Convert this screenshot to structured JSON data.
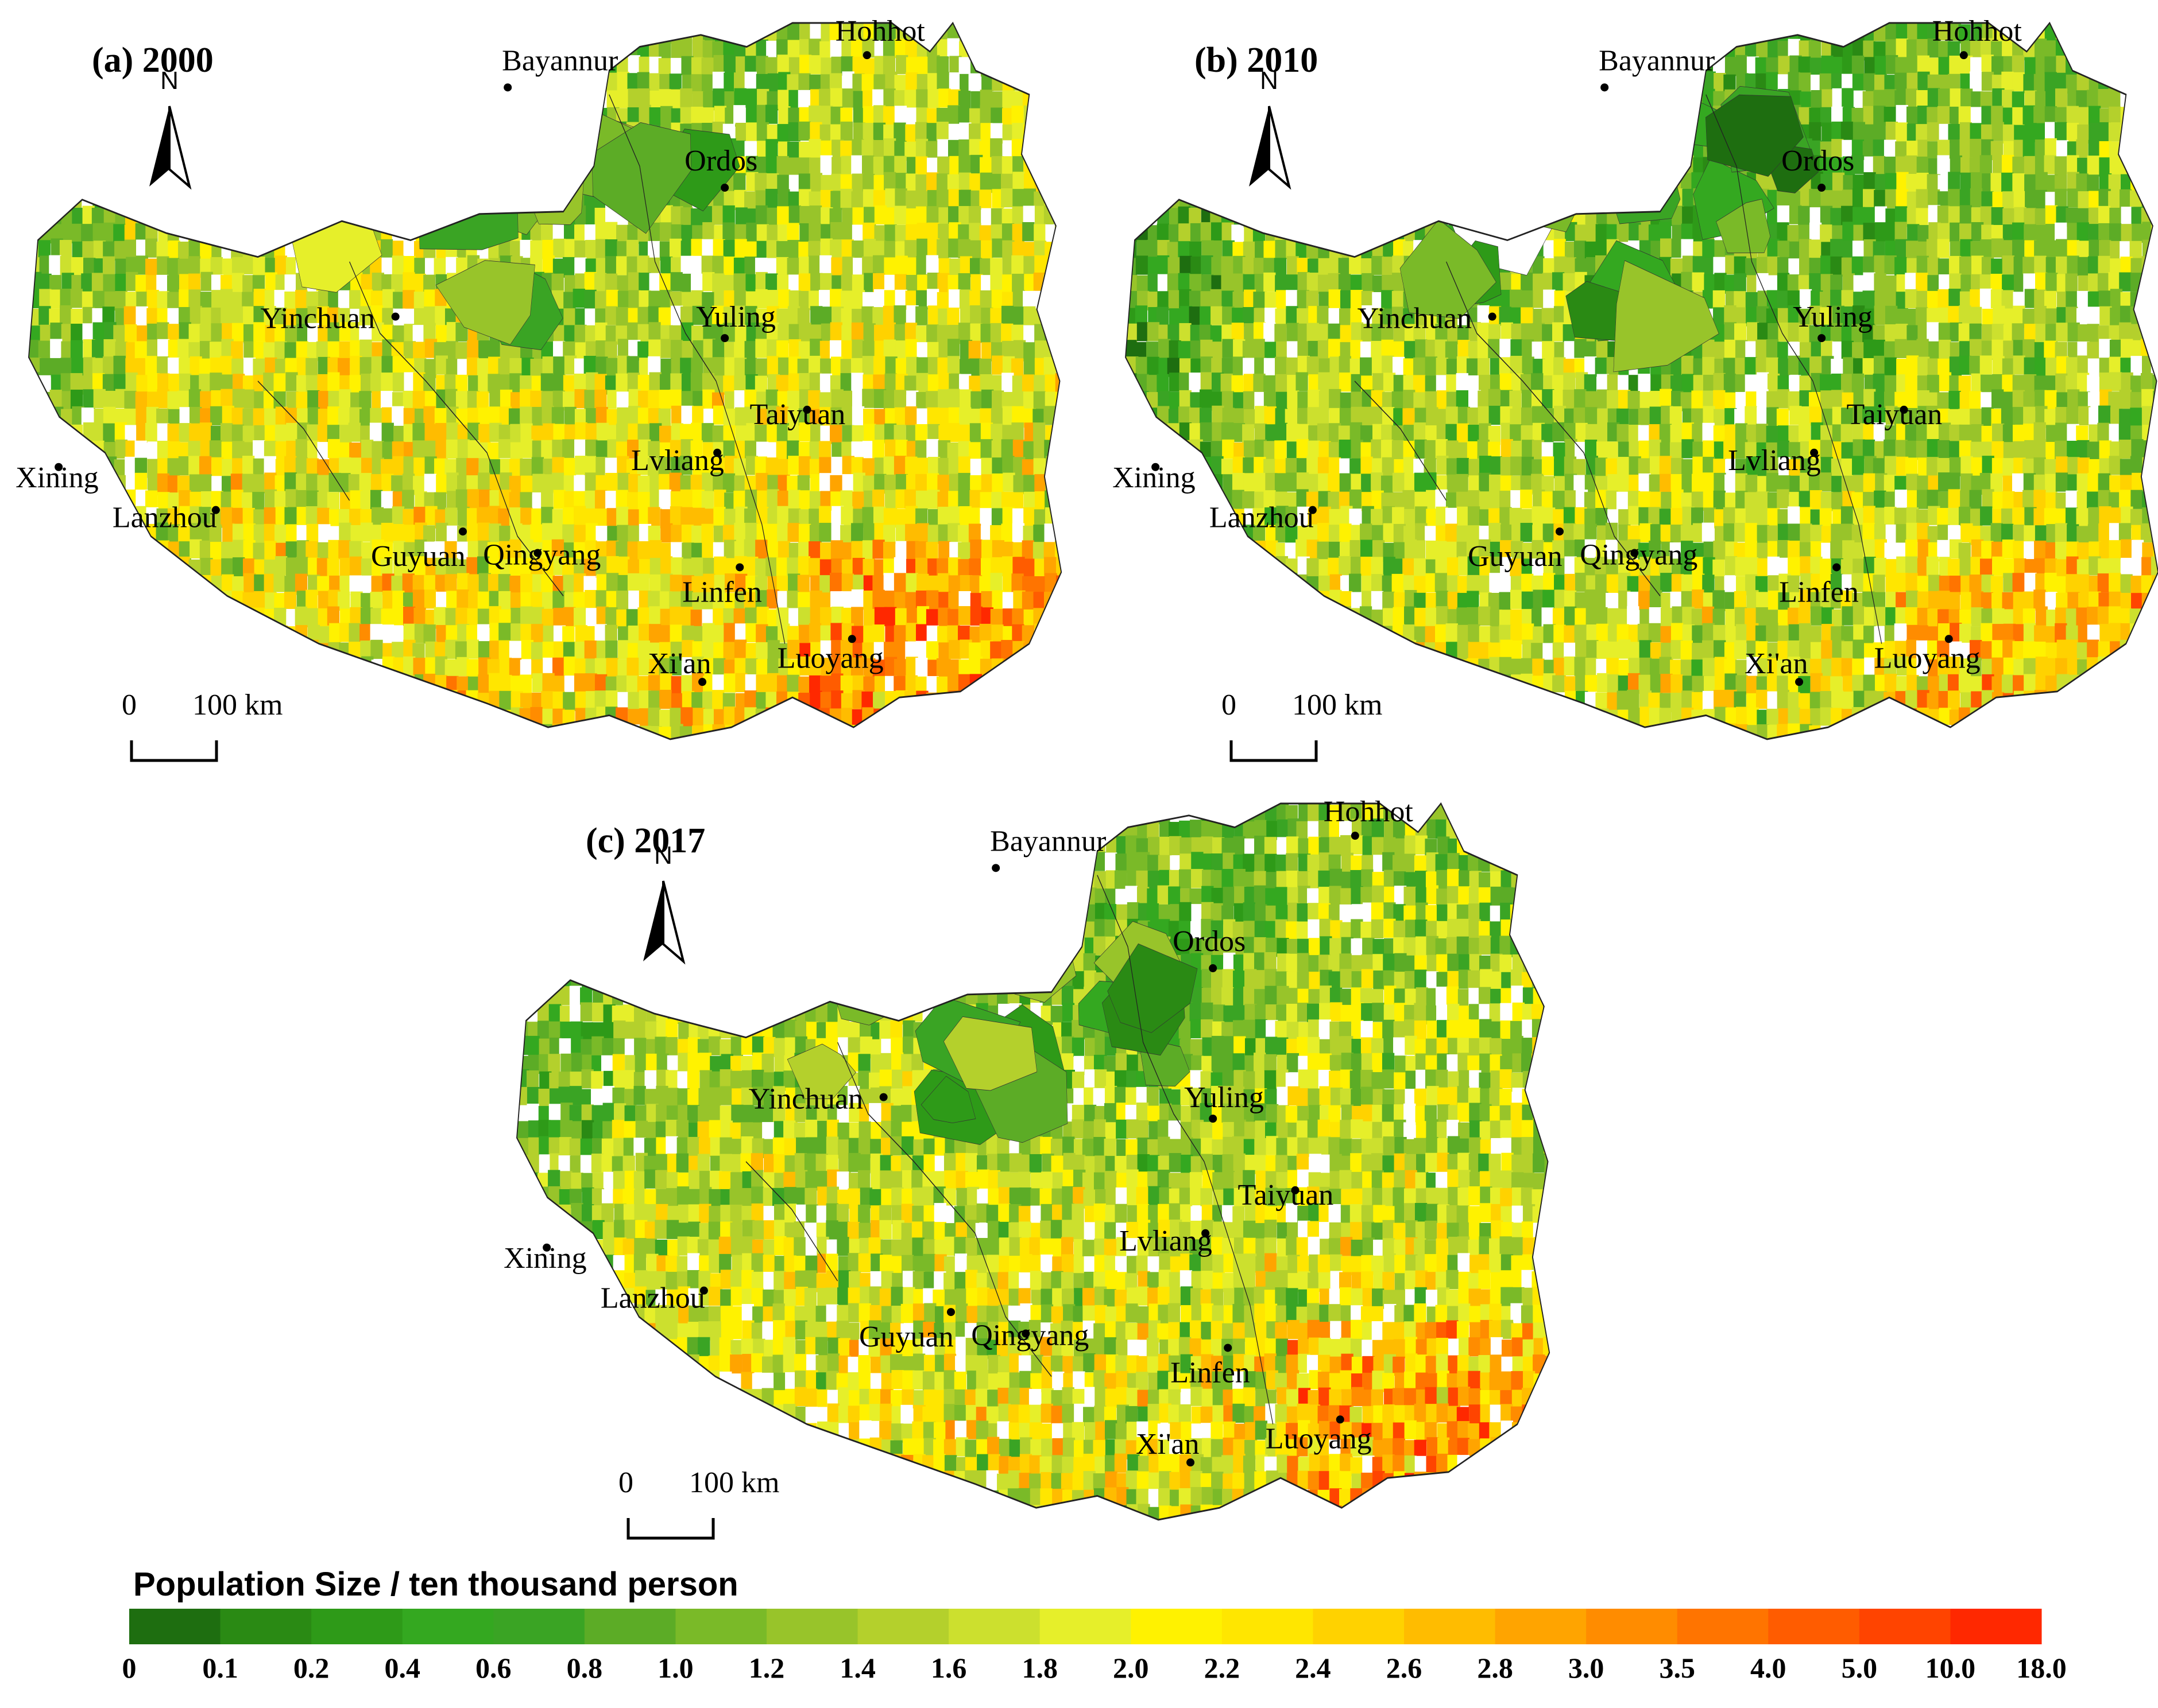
{
  "panels": [
    {
      "id": "a",
      "title": "(a) 2000",
      "cities": [
        "Hohhot",
        "Bayannur",
        "Ordos",
        "Yinchuan",
        "Yuling",
        "Taiyuan",
        "Lvliang",
        "Xining",
        "Lanzhou",
        "Guyuan",
        "Qingyang",
        "Linfen",
        "Xi'an",
        "Luoyang"
      ]
    },
    {
      "id": "b",
      "title": "(b) 2010",
      "cities": [
        "Hohhot",
        "Bayannur",
        "Ordos",
        "Yinchuan",
        "Yuling",
        "Taiyuan",
        "Lvliang",
        "Xining",
        "Lanzhou",
        "Guyuan",
        "Qingyang",
        "Linfen",
        "Xi'an",
        "Luoyang"
      ]
    },
    {
      "id": "c",
      "title": "(c) 2017",
      "cities": [
        "Hohhot",
        "Bayannur",
        "Ordos",
        "Yinchuan",
        "Yuling",
        "Taiyuan",
        "Lvliang",
        "Xining",
        "Lanzhou",
        "Guyuan",
        "Qingyang",
        "Linfen",
        "Xi'an",
        "Luoyang"
      ]
    }
  ],
  "north_label": "N",
  "scale_bar": {
    "zero": "0",
    "label": "100 km"
  },
  "legend": {
    "title": "Population Size / ten thousand person",
    "ticks": [
      "0",
      "0.1",
      "0.2",
      "0.4",
      "0.6",
      "0.8",
      "1.0",
      "1.2",
      "1.4",
      "1.6",
      "1.8",
      "2.0",
      "2.2",
      "2.4",
      "2.6",
      "2.8",
      "3.0",
      "3.5",
      "4.0",
      "5.0",
      "10.0",
      "18.0"
    ],
    "colors": [
      "#1e6e10",
      "#2a8a14",
      "#2e9a18",
      "#34a820",
      "#3aa424",
      "#5cac26",
      "#7aba28",
      "#98c42a",
      "#b4d02c",
      "#cce02e",
      "#e6ef2a",
      "#fff200",
      "#ffe600",
      "#ffd200",
      "#ffbc00",
      "#ffa400",
      "#ff8c00",
      "#ff7400",
      "#ff5c00",
      "#ff4400",
      "#ff2800"
    ]
  }
}
